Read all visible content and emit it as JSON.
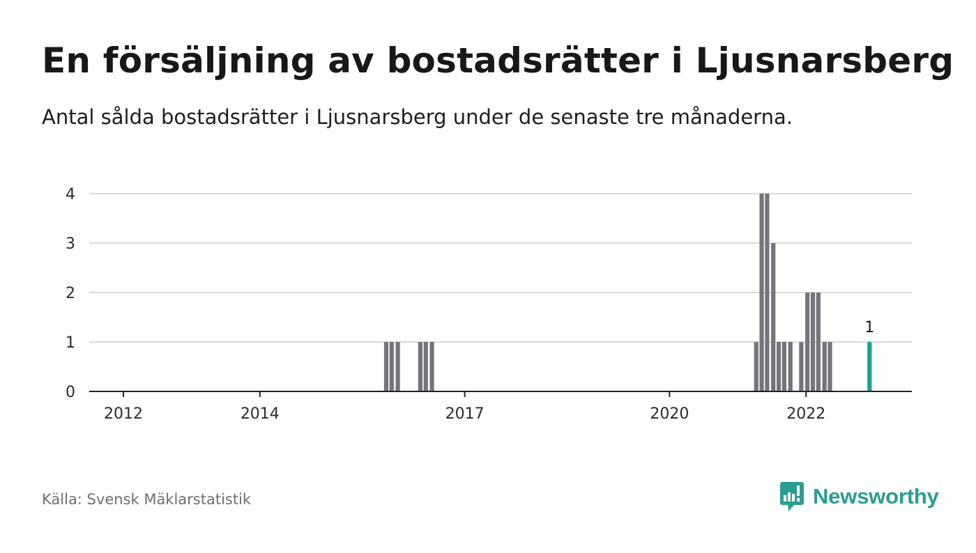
{
  "header": {
    "title": "En försäljning av bostadsrätter i Ljusnarsberg",
    "subtitle": "Antal sålda bostadsrätter i Ljusnarsberg under de senaste tre månaderna."
  },
  "footer": {
    "source": "Källa: Svensk Mäklarstatistik",
    "brand_name": "Newsworthy",
    "brand_icon": "bar-chart-speech-bubble-icon"
  },
  "colors": {
    "bar": "#75747a",
    "highlight": "#15a196",
    "grid": "#d9d9d9",
    "axis": "#222222",
    "brand": "#2a9d92"
  },
  "chart_data": {
    "type": "bar",
    "ylim": [
      0,
      4
    ],
    "yticks": [
      "0",
      "1",
      "2",
      "3",
      "4"
    ],
    "xlim": [
      2011.5,
      2023.55
    ],
    "xticks": [
      {
        "label": "2012",
        "value": 2012
      },
      {
        "label": "2014",
        "value": 2014
      },
      {
        "label": "2017",
        "value": 2017
      },
      {
        "label": "2020",
        "value": 2020
      },
      {
        "label": "2022",
        "value": 2022
      }
    ],
    "grid": true,
    "series": [
      {
        "highlight_last": true,
        "points": [
          {
            "x": 2015.85,
            "y": 1
          },
          {
            "x": 2015.93,
            "y": 1
          },
          {
            "x": 2016.02,
            "y": 1
          },
          {
            "x": 2016.35,
            "y": 1
          },
          {
            "x": 2016.43,
            "y": 1
          },
          {
            "x": 2016.52,
            "y": 1
          },
          {
            "x": 2021.27,
            "y": 1
          },
          {
            "x": 2021.35,
            "y": 4
          },
          {
            "x": 2021.43,
            "y": 4
          },
          {
            "x": 2021.52,
            "y": 3
          },
          {
            "x": 2021.6,
            "y": 1
          },
          {
            "x": 2021.68,
            "y": 1
          },
          {
            "x": 2021.77,
            "y": 1
          },
          {
            "x": 2021.93,
            "y": 1
          },
          {
            "x": 2022.02,
            "y": 2
          },
          {
            "x": 2022.1,
            "y": 2
          },
          {
            "x": 2022.18,
            "y": 2
          },
          {
            "x": 2022.27,
            "y": 1
          },
          {
            "x": 2022.35,
            "y": 1
          },
          {
            "x": 2022.93,
            "y": 1
          }
        ]
      }
    ],
    "annotations": [
      {
        "label": "1",
        "x": 2022.93,
        "y": 1
      }
    ]
  }
}
